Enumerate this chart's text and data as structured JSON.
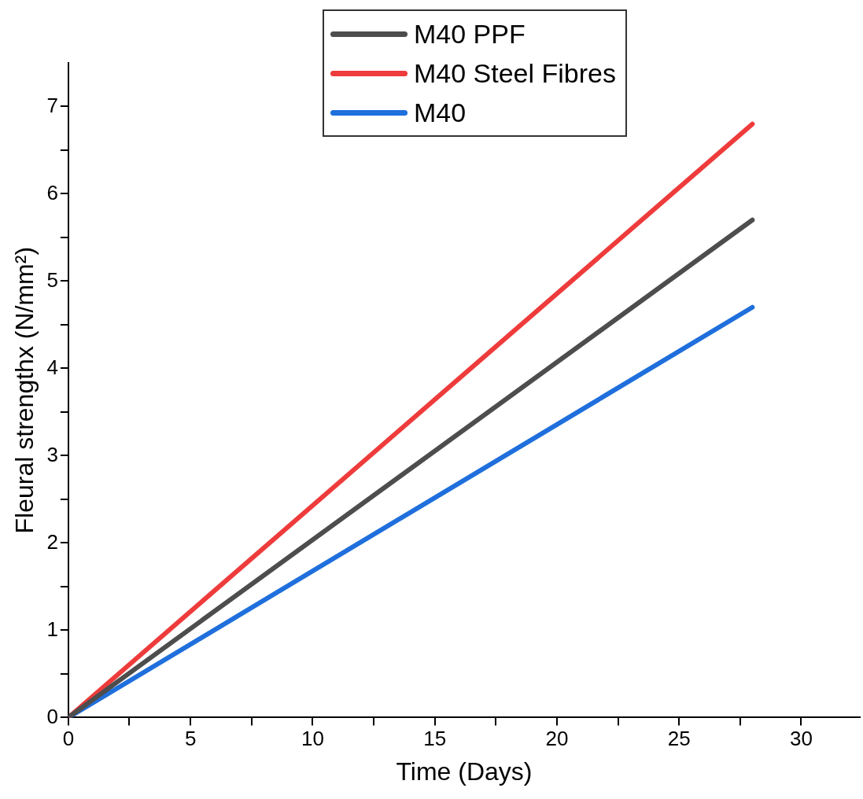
{
  "chart_data": {
    "type": "line",
    "xlabel": "Time (Days)",
    "ylabel": "Fleural strengthx (N/mm²)",
    "x": [
      0,
      28
    ],
    "series": [
      {
        "name": "M40 PPF",
        "color": "#4d4d4d",
        "values": [
          0,
          5.7
        ]
      },
      {
        "name": "M40 Steel Fibres",
        "color": "#ee3b3b",
        "values": [
          0,
          6.8
        ]
      },
      {
        "name": "M40",
        "color": "#1f6fdc",
        "values": [
          0,
          4.7
        ]
      }
    ],
    "xlim": [
      0,
      32.4
    ],
    "ylim": [
      0,
      7.5
    ],
    "xticks": [
      0,
      {
        "value": 2.5,
        "label": null
      },
      5,
      {
        "value": 7.5,
        "label": null
      },
      10,
      {
        "value": 12.5,
        "label": null
      },
      15,
      {
        "value": 17.5,
        "label": null
      },
      20,
      {
        "value": 22.5,
        "label": null
      },
      25,
      {
        "value": 27.5,
        "label": null
      },
      30
    ],
    "yticks": [
      0,
      {
        "value": 0.5,
        "label": null
      },
      1,
      {
        "value": 1.5,
        "label": null
      },
      2,
      {
        "value": 2.5,
        "label": null
      },
      3,
      {
        "value": 3.5,
        "label": null
      },
      4,
      {
        "value": 4.5,
        "label": null
      },
      5,
      {
        "value": 5.5,
        "label": null
      },
      6,
      {
        "value": 6.5,
        "label": null
      },
      7
    ],
    "grid": false,
    "legend": "top",
    "marker": "none",
    "line_style": "solid"
  }
}
